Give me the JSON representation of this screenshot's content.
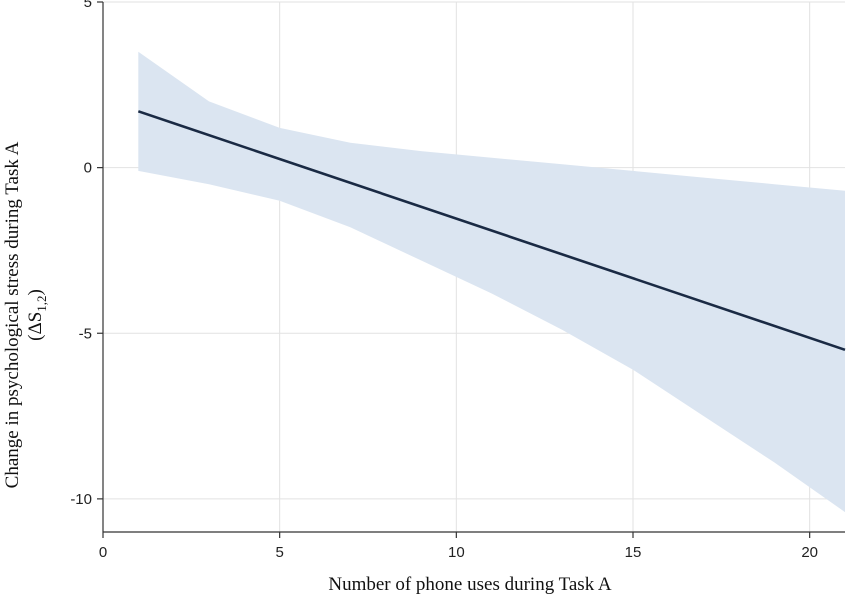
{
  "chart_data": {
    "type": "line",
    "title": "",
    "xlabel": "Number of phone uses during Task A",
    "ylabel": "Change in psychological stress during Task A",
    "ylabel_sub": "(ΔS",
    "ylabel_sub_index": "1,2",
    "ylabel_sub_close": ")",
    "xlim": [
      0,
      21
    ],
    "ylim": [
      -11,
      5
    ],
    "x_ticks": [
      0,
      5,
      10,
      15,
      20
    ],
    "x_tick_labels": [
      "0",
      "5",
      "10",
      "15",
      "20"
    ],
    "y_ticks": [
      5,
      0,
      -5,
      -10
    ],
    "y_tick_labels": [
      "5",
      "0",
      "-5",
      "-10"
    ],
    "grid": true,
    "line_color": "#1a2a44",
    "band_color": "#dbe5f1",
    "series": [
      {
        "type": "line",
        "x": [
          1,
          21
        ],
        "y": [
          1.7,
          -5.5
        ]
      },
      {
        "type": "confidence-band",
        "x": [
          1,
          3,
          5,
          7,
          9,
          11,
          13,
          15,
          17,
          19,
          21
        ],
        "upper": [
          3.5,
          2.0,
          1.2,
          0.75,
          0.5,
          0.3,
          0.1,
          -0.1,
          -0.3,
          -0.5,
          -0.7
        ],
        "lower": [
          -0.1,
          -0.5,
          -1.0,
          -1.8,
          -2.8,
          -3.8,
          -4.9,
          -6.1,
          -7.5,
          -8.9,
          -10.4
        ]
      }
    ]
  }
}
